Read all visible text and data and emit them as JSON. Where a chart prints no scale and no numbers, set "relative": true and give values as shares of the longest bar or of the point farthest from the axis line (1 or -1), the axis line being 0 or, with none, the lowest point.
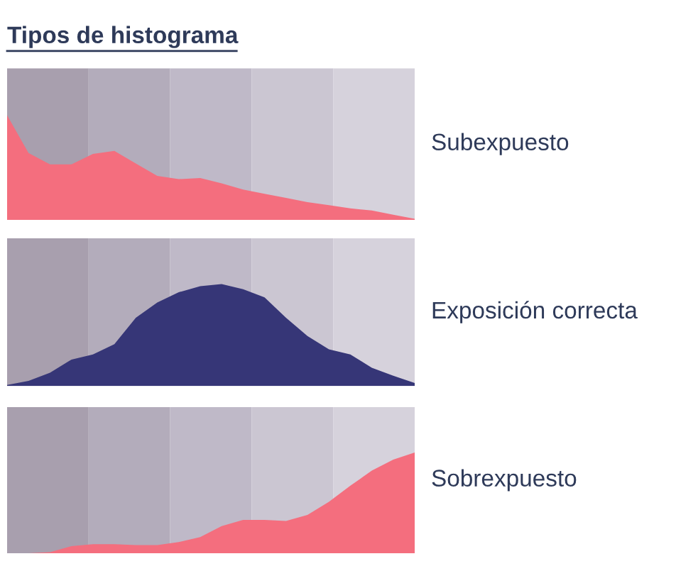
{
  "chart_data": [
    {
      "type": "area",
      "title": "Tipos de histograma",
      "relative": true,
      "categories": [
        null,
        null,
        null,
        null,
        null,
        null,
        null,
        null,
        null,
        null,
        null,
        null,
        null,
        null,
        null,
        null,
        null,
        null,
        null,
        null
      ],
      "series": [
        {
          "color": "#f46e7e",
          "values": [
            1,
            0.64,
            0.53,
            0.53,
            0.63,
            0.66,
            0.54,
            0.42,
            0.39,
            0.4,
            0.35,
            0.29,
            0.25,
            0.21,
            0.17,
            0.14,
            0.11,
            0.09,
            0.05,
            0.01
          ]
        }
      ],
      "annotations": [
        "Subexpuesto"
      ]
    },
    {
      "type": "area",
      "relative": true,
      "categories": [
        null,
        null,
        null,
        null,
        null,
        null,
        null,
        null,
        null,
        null,
        null,
        null,
        null,
        null,
        null,
        null,
        null,
        null,
        null,
        null
      ],
      "series": [
        {
          "color": "#363677",
          "values": [
            0.01,
            0.05,
            0.13,
            0.26,
            0.31,
            0.41,
            0.67,
            0.82,
            0.92,
            0.98,
            1,
            0.95,
            0.87,
            0.67,
            0.49,
            0.36,
            0.31,
            0.18,
            0.1,
            0.03
          ]
        }
      ],
      "annotations": [
        "Exposición correcta"
      ]
    },
    {
      "type": "area",
      "relative": true,
      "categories": [
        null,
        null,
        null,
        null,
        null,
        null,
        null,
        null,
        null,
        null,
        null,
        null,
        null,
        null,
        null,
        null,
        null,
        null,
        null,
        null
      ],
      "series": [
        {
          "color": "#f46e7e",
          "values": [
            0,
            0,
            0.01,
            0.07,
            0.09,
            0.09,
            0.08,
            0.08,
            0.11,
            0.16,
            0.27,
            0.33,
            0.33,
            0.32,
            0.38,
            0.51,
            0.67,
            0.82,
            0.93,
            1
          ]
        }
      ],
      "annotations": [
        "Sobrexpuesto"
      ]
    }
  ]
}
